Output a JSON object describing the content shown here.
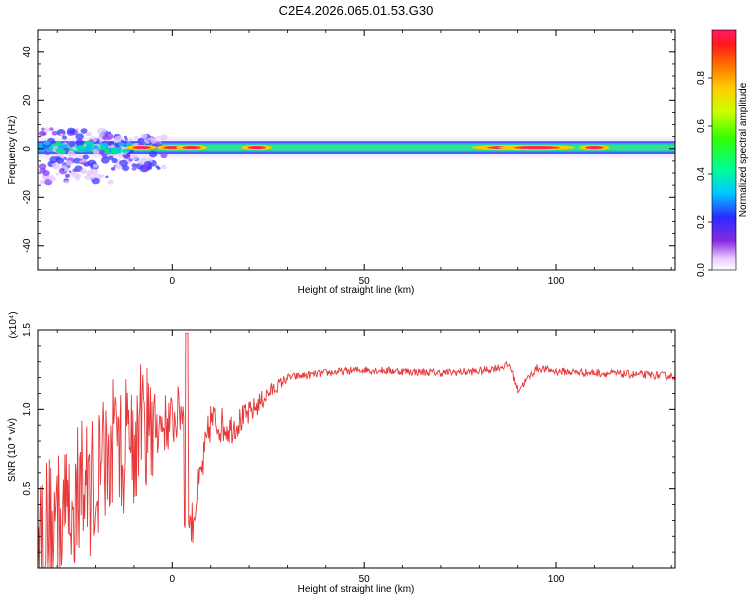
{
  "title": "C2E4.2026.065.01.53.G30",
  "colors": {
    "snr_line": "#e8383a",
    "trace_core": "#ff2a4a",
    "trace_halo": "#35e08a"
  },
  "chart_data": [
    {
      "type": "heatmap",
      "xlabel": "Height of straight line (km)",
      "ylabel": "Frequency (Hz)",
      "xlim": [
        -35,
        131
      ],
      "ylim": [
        -50,
        49
      ],
      "xticks": [
        0,
        50,
        100
      ],
      "yticks": [
        -40,
        -20,
        0,
        20,
        40
      ],
      "colorbar": {
        "label": "Normalized spectral amplitude",
        "range": [
          0.0,
          1.0
        ],
        "ticks": [
          "0.0",
          "0.2",
          "0.4",
          "0.6",
          "0.8"
        ],
        "tick_values": [
          0.0,
          0.2,
          0.4,
          0.6,
          0.8
        ]
      },
      "trace": {
        "description": "narrow band centered near 0 Hz along the full height range",
        "center_frequency_hz": 0.5,
        "peak_heights_km": [
          -8,
          0,
          5,
          22,
          88,
          95,
          110
        ]
      }
    },
    {
      "type": "line",
      "xlabel": "Height of straight line (km)",
      "ylabel": "SNR (10 * v/v)",
      "scale_label": "(x10⁴)",
      "xlim": [
        -35,
        131
      ],
      "ylim": [
        0,
        1.5
      ],
      "xticks": [
        0,
        50,
        100
      ],
      "yticks": [
        0.5,
        1.0,
        1.5
      ],
      "ytick_labels": [
        "0.5",
        "1.0",
        "1.5"
      ],
      "series": [
        {
          "x": [
            -35,
            -30,
            -25,
            -20,
            -15,
            -10,
            -5,
            0,
            3,
            5,
            10,
            15,
            20,
            25,
            30,
            40,
            50,
            60,
            70,
            80,
            88,
            90,
            95,
            100,
            110,
            120,
            131
          ],
          "y": [
            0.25,
            0.3,
            0.45,
            0.55,
            0.72,
            0.82,
            0.9,
            0.92,
            1.02,
            0.25,
            0.93,
            0.88,
            0.97,
            1.1,
            1.2,
            1.23,
            1.25,
            1.24,
            1.23,
            1.24,
            1.28,
            1.12,
            1.26,
            1.24,
            1.23,
            1.22,
            1.21
          ]
        }
      ]
    }
  ]
}
